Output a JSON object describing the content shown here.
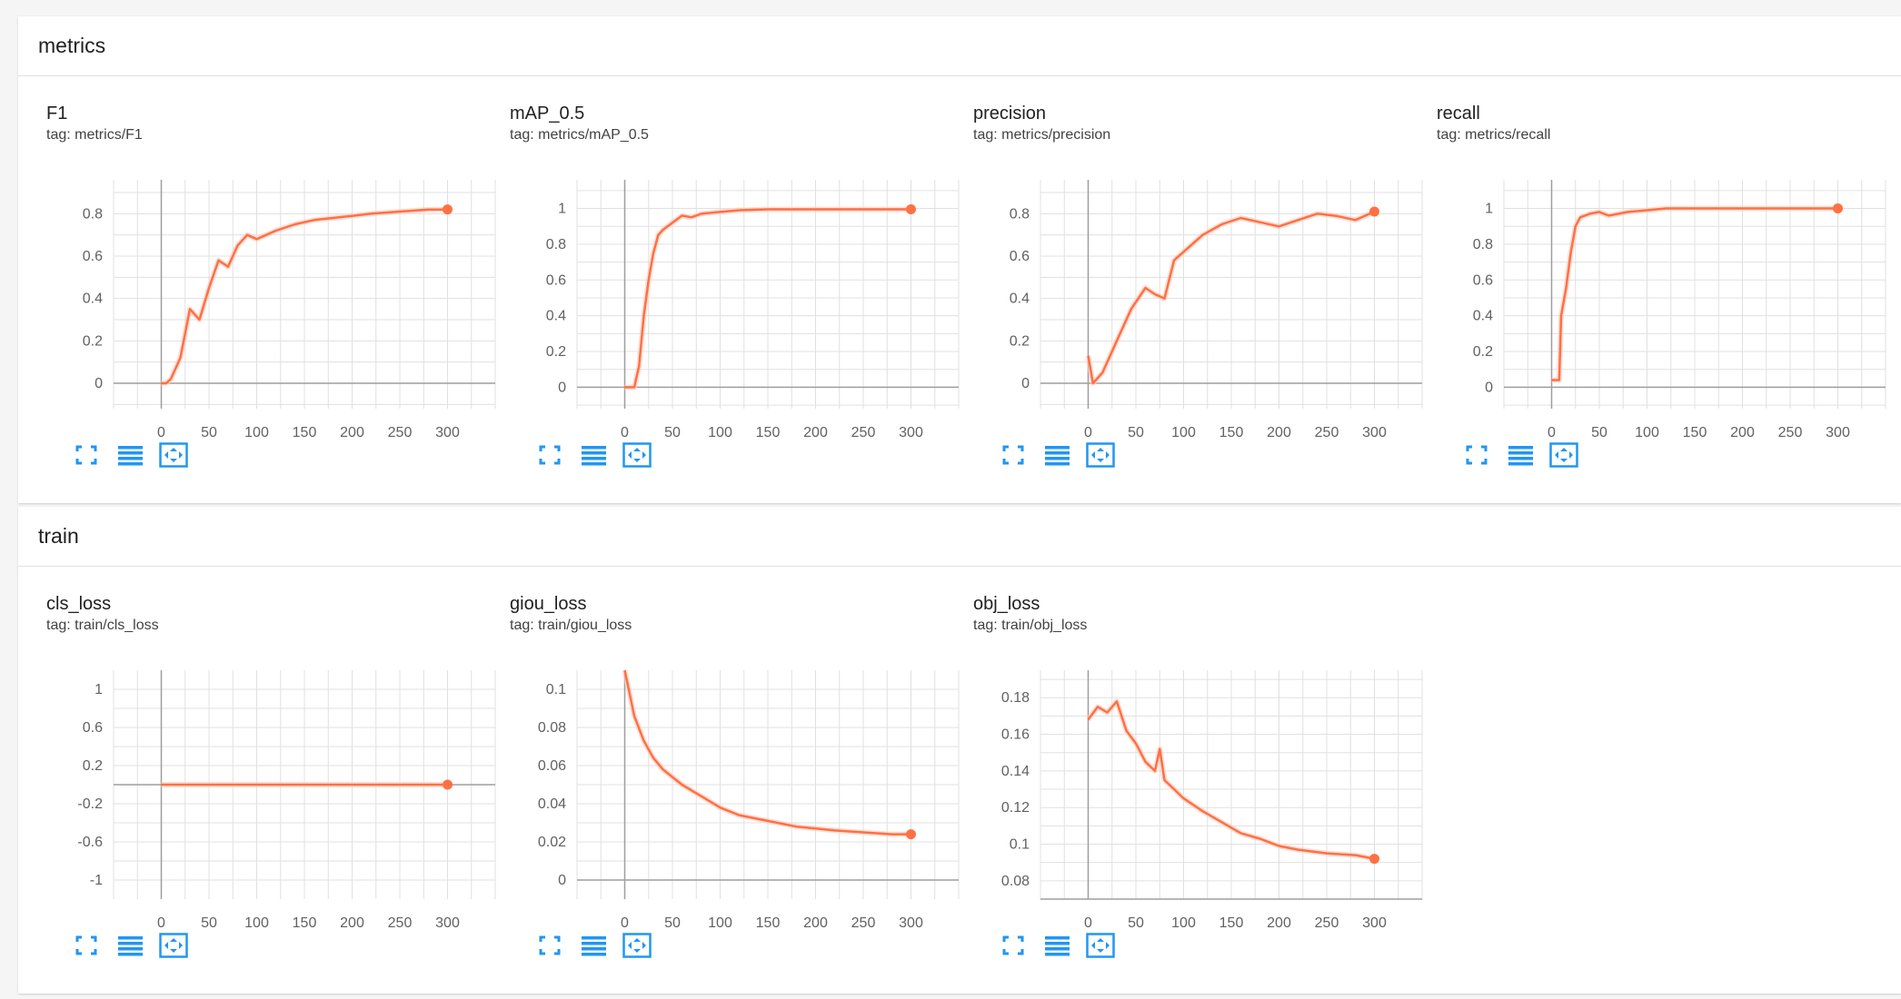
{
  "sections": [
    {
      "title": "metrics"
    },
    {
      "title": "train"
    }
  ],
  "cards": [
    {
      "title": "F1",
      "tag": "tag: metrics/F1"
    },
    {
      "title": "mAP_0.5",
      "tag": "tag: metrics/mAP_0.5"
    },
    {
      "title": "precision",
      "tag": "tag: metrics/precision"
    },
    {
      "title": "recall",
      "tag": "tag: metrics/recall"
    },
    {
      "title": "cls_loss",
      "tag": "tag: train/cls_loss"
    },
    {
      "title": "giou_loss",
      "tag": "tag: train/giou_loss"
    },
    {
      "title": "obj_loss",
      "tag": "tag: train/obj_loss"
    }
  ],
  "icons": {
    "fit": "fit-screen-icon",
    "lines": "toggle-lines-icon",
    "expand": "expand-icon"
  },
  "colors": {
    "series": "#ff7043",
    "series_raw": "#ffccbc",
    "grid": "#e0e0e0",
    "axis": "#9e9e9e",
    "button": "#2196f3"
  },
  "chart_data": [
    {
      "type": "line",
      "title": "F1",
      "x": [
        0,
        5,
        10,
        20,
        30,
        40,
        50,
        60,
        70,
        80,
        90,
        100,
        120,
        140,
        160,
        180,
        200,
        220,
        250,
        280,
        300
      ],
      "series": [
        {
          "values": [
            0,
            0,
            0.02,
            0.12,
            0.35,
            0.3,
            0.45,
            0.58,
            0.55,
            0.65,
            0.7,
            0.68,
            0.72,
            0.75,
            0.77,
            0.78,
            0.79,
            0.8,
            0.81,
            0.82,
            0.82
          ]
        }
      ],
      "xticks": [
        "0",
        "50",
        "100",
        "150",
        "200",
        "250",
        "300"
      ],
      "yticks": [
        "0",
        "0.2",
        "0.4",
        "0.6",
        "0.8"
      ],
      "xlim": [
        -50,
        350
      ],
      "ylim": [
        -0.12,
        0.96
      ]
    },
    {
      "type": "line",
      "title": "mAP_0.5",
      "x": [
        0,
        10,
        15,
        20,
        25,
        30,
        35,
        40,
        50,
        60,
        70,
        80,
        100,
        120,
        150,
        200,
        250,
        300
      ],
      "series": [
        {
          "values": [
            0,
            0,
            0.12,
            0.4,
            0.6,
            0.75,
            0.85,
            0.88,
            0.92,
            0.96,
            0.95,
            0.97,
            0.98,
            0.99,
            0.995,
            0.995,
            0.995,
            0.995
          ]
        }
      ],
      "xticks": [
        "0",
        "50",
        "100",
        "150",
        "200",
        "250",
        "300"
      ],
      "yticks": [
        "0",
        "0.2",
        "0.4",
        "0.6",
        "0.8",
        "1"
      ],
      "xlim": [
        -50,
        350
      ],
      "ylim": [
        -0.12,
        1.16
      ]
    },
    {
      "type": "line",
      "title": "precision",
      "x": [
        0,
        5,
        15,
        30,
        45,
        60,
        70,
        80,
        90,
        100,
        120,
        140,
        160,
        180,
        200,
        220,
        240,
        260,
        280,
        300
      ],
      "series": [
        {
          "values": [
            0.13,
            0.0,
            0.05,
            0.2,
            0.35,
            0.45,
            0.42,
            0.4,
            0.58,
            0.62,
            0.7,
            0.75,
            0.78,
            0.76,
            0.74,
            0.77,
            0.8,
            0.79,
            0.77,
            0.81
          ]
        }
      ],
      "xticks": [
        "0",
        "50",
        "100",
        "150",
        "200",
        "250",
        "300"
      ],
      "yticks": [
        "0",
        "0.2",
        "0.4",
        "0.6",
        "0.8"
      ],
      "xlim": [
        -50,
        350
      ],
      "ylim": [
        -0.12,
        0.96
      ]
    },
    {
      "type": "line",
      "title": "recall",
      "x": [
        0,
        5,
        8,
        10,
        15,
        20,
        25,
        30,
        40,
        50,
        60,
        70,
        80,
        100,
        120,
        150,
        200,
        250,
        300
      ],
      "series": [
        {
          "values": [
            0.04,
            0.04,
            0.04,
            0.4,
            0.55,
            0.75,
            0.9,
            0.95,
            0.97,
            0.98,
            0.96,
            0.97,
            0.98,
            0.99,
            1.0,
            1.0,
            1.0,
            1.0,
            1.0
          ]
        }
      ],
      "xticks": [
        "0",
        "50",
        "100",
        "150",
        "200",
        "250",
        "300"
      ],
      "yticks": [
        "0",
        "0.2",
        "0.4",
        "0.6",
        "0.8",
        "1"
      ],
      "xlim": [
        -50,
        350
      ],
      "ylim": [
        -0.12,
        1.16
      ]
    },
    {
      "type": "line",
      "title": "cls_loss",
      "x": [
        0,
        50,
        100,
        150,
        200,
        250,
        300
      ],
      "series": [
        {
          "values": [
            0,
            0,
            0,
            0,
            0,
            0,
            0
          ]
        }
      ],
      "xticks": [
        "0",
        "50",
        "100",
        "150",
        "200",
        "250",
        "300"
      ],
      "yticks": [
        "-1",
        "-0.6",
        "-0.2",
        "0.2",
        "0.6",
        "1"
      ],
      "xlim": [
        -50,
        350
      ],
      "ylim": [
        -1.2,
        1.2
      ]
    },
    {
      "type": "line",
      "title": "giou_loss",
      "x": [
        0,
        5,
        10,
        20,
        30,
        40,
        50,
        60,
        80,
        100,
        120,
        150,
        180,
        200,
        220,
        250,
        280,
        300
      ],
      "series": [
        {
          "values": [
            0.11,
            0.098,
            0.086,
            0.073,
            0.064,
            0.058,
            0.054,
            0.05,
            0.044,
            0.038,
            0.034,
            0.031,
            0.028,
            0.027,
            0.026,
            0.025,
            0.024,
            0.024
          ]
        }
      ],
      "xticks": [
        "0",
        "50",
        "100",
        "150",
        "200",
        "250",
        "300"
      ],
      "yticks": [
        "0",
        "0.02",
        "0.04",
        "0.06",
        "0.08",
        "0.1"
      ],
      "xlim": [
        -50,
        350
      ],
      "ylim": [
        -0.01,
        0.11
      ]
    },
    {
      "type": "line",
      "title": "obj_loss",
      "x": [
        0,
        10,
        20,
        30,
        40,
        50,
        60,
        70,
        75,
        80,
        90,
        100,
        120,
        140,
        160,
        180,
        200,
        220,
        250,
        280,
        300
      ],
      "series": [
        {
          "values": [
            0.168,
            0.175,
            0.172,
            0.178,
            0.162,
            0.155,
            0.145,
            0.14,
            0.152,
            0.135,
            0.13,
            0.125,
            0.118,
            0.112,
            0.106,
            0.103,
            0.099,
            0.097,
            0.095,
            0.094,
            0.092
          ]
        }
      ],
      "xticks": [
        "0",
        "50",
        "100",
        "150",
        "200",
        "250",
        "300"
      ],
      "yticks": [
        "0.08",
        "0.1",
        "0.12",
        "0.14",
        "0.16",
        "0.18"
      ],
      "xlim": [
        -50,
        350
      ],
      "ylim": [
        0.07,
        0.195
      ]
    }
  ]
}
